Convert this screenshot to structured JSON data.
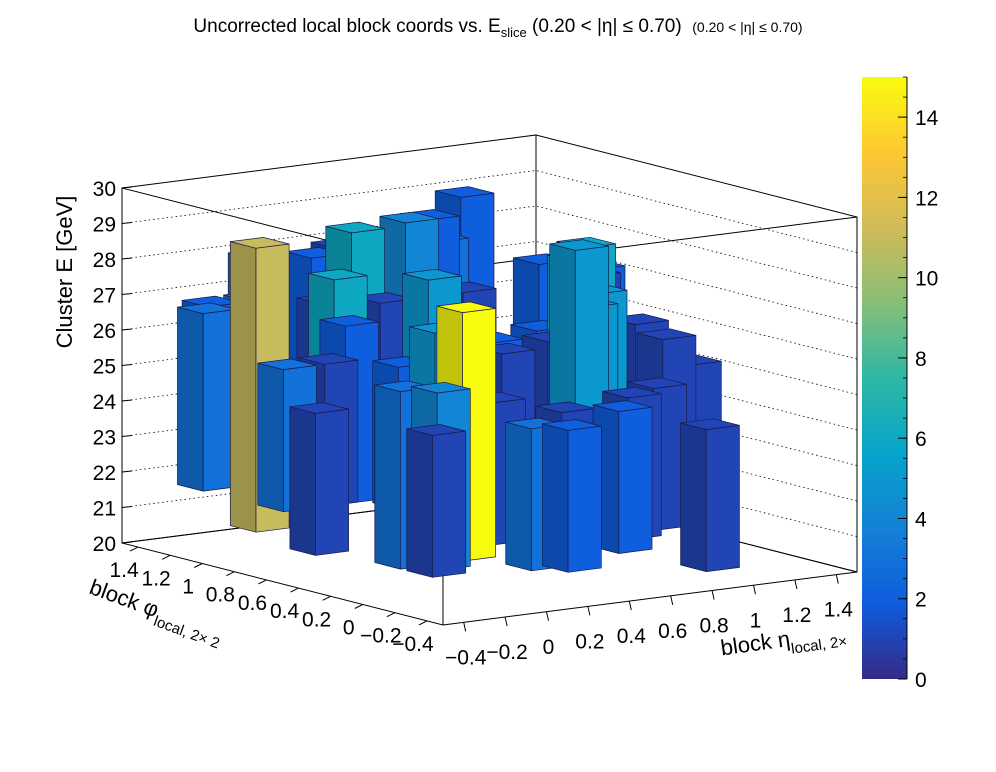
{
  "title": {
    "main": "Uncorrected local block coords vs. E",
    "subscript": "slice",
    "condition": " (0.20 < |η| ≤ 0.70)",
    "condition_small": "(0.20 < |η| ≤ 0.70)"
  },
  "chart_data": {
    "type": "lego3d",
    "title": "Uncorrected local block coords vs. E_slice (0.20 < |η| ≤ 0.70) (0.20 < |η| ≤ 0.70)",
    "axes": {
      "x": {
        "label": "block η",
        "label_sub": "local, 2×",
        "range": [
          -0.5,
          1.5
        ],
        "tick_labels": [
          "−0.4",
          "−0.2",
          "0",
          "0.2",
          "0.4",
          "0.6",
          "0.8",
          "1",
          "1.2",
          "1.4"
        ]
      },
      "y": {
        "label": "block φ",
        "label_sub": "local, 2× 2",
        "range": [
          -0.5,
          1.5
        ],
        "tick_labels": [
          "−0.4",
          "−0.2",
          "0",
          "0.2",
          "0.4",
          "0.6",
          "0.8",
          "1",
          "1.2",
          "1.4"
        ]
      },
      "z": {
        "label": "Cluster E  [GeV]",
        "range": [
          20,
          30
        ],
        "tick_labels": [
          "20",
          "21",
          "22",
          "23",
          "24",
          "25",
          "26",
          "27",
          "28",
          "29",
          "30"
        ]
      }
    },
    "color_scale": {
      "range": [
        0,
        15
      ],
      "tick_labels": [
        "0",
        "2",
        "4",
        "6",
        "8",
        "10",
        "12",
        "14"
      ],
      "palette": [
        "#352a87",
        "#0f5cdd",
        "#1481d6",
        "#06a4ca",
        "#2eb7a4",
        "#87bf77",
        "#d1bb59",
        "#fec832",
        "#f9fb0e"
      ]
    },
    "bars": [
      {
        "eta": 0.0,
        "phi": 0.0,
        "zlo": 21,
        "zhi": 28,
        "count": 15
      },
      {
        "eta": -0.3,
        "phi": 0.9,
        "zlo": 21,
        "zhi": 29,
        "count": 11
      },
      {
        "eta": 0.0,
        "phi": 0.8,
        "zlo": 22,
        "zhi": 28,
        "count": 6
      },
      {
        "eta": 0.2,
        "phi": 0.95,
        "zlo": 23,
        "zhi": 29,
        "count": 6
      },
      {
        "eta": 0.7,
        "phi": 0.2,
        "zlo": 23,
        "zhi": 29,
        "count": 5
      },
      {
        "eta": 1.0,
        "phi": 0.6,
        "zlo": 23,
        "zhi": 28,
        "count": 6
      },
      {
        "eta": 1.2,
        "phi": 0.8,
        "zlo": 22,
        "zhi": 28,
        "count": 6
      },
      {
        "eta": 0.1,
        "phi": 0.3,
        "zlo": 22,
        "zhi": 27,
        "count": 5
      },
      {
        "eta": 0.9,
        "phi": 0.4,
        "zlo": 22,
        "zhi": 27,
        "count": 5
      },
      {
        "eta": 1.1,
        "phi": 0.6,
        "zlo": 22,
        "zhi": 27,
        "count": 5
      },
      {
        "eta": 0.3,
        "phi": 0.6,
        "zlo": 22,
        "zhi": 28,
        "count": 5
      },
      {
        "eta": -0.3,
        "phi": 0.0,
        "zlo": 21,
        "zhi": 26,
        "count": 3
      },
      {
        "eta": -0.2,
        "phi": -0.1,
        "zlo": 21,
        "zhi": 26,
        "count": 4
      },
      {
        "eta": 0.1,
        "phi": -0.3,
        "zlo": 21,
        "zhi": 25,
        "count": 3
      },
      {
        "eta": -0.4,
        "phi": 1.1,
        "zlo": 22,
        "zhi": 27,
        "count": 3
      },
      {
        "eta": -0.3,
        "phi": 1.2,
        "zlo": 22,
        "zhi": 27,
        "count": 2
      },
      {
        "eta": -0.1,
        "phi": 1.2,
        "zlo": 22,
        "zhi": 27,
        "count": 3
      },
      {
        "eta": 0.0,
        "phi": 1.3,
        "zlo": 23,
        "zhi": 28,
        "count": 3
      },
      {
        "eta": -0.1,
        "phi": 0.6,
        "zlo": 22,
        "zhi": 27,
        "count": 2
      },
      {
        "eta": 0.5,
        "phi": 1.0,
        "zlo": 24,
        "zhi": 29,
        "count": 4
      },
      {
        "eta": 0.6,
        "phi": 1.0,
        "zlo": 24,
        "zhi": 29,
        "count": 2
      },
      {
        "eta": 0.8,
        "phi": 1.2,
        "zlo": 23,
        "zhi": 28,
        "count": 3
      },
      {
        "eta": 1.0,
        "phi": 1.3,
        "zlo": 24,
        "zhi": 29,
        "count": 2
      },
      {
        "eta": 1.3,
        "phi": 1.2,
        "zlo": 22,
        "zhi": 27,
        "count": 2
      },
      {
        "eta": 1.4,
        "phi": 1.0,
        "zlo": 22,
        "zhi": 27,
        "count": 2
      },
      {
        "eta": 1.2,
        "phi": 0.3,
        "zlo": 22,
        "zhi": 26,
        "count": 1
      },
      {
        "eta": 1.4,
        "phi": 0.4,
        "zlo": 21,
        "zhi": 25,
        "count": 1
      },
      {
        "eta": 0.6,
        "phi": -0.2,
        "zlo": 21,
        "zhi": 25,
        "count": 2
      },
      {
        "eta": 0.4,
        "phi": -0.1,
        "zlo": 21,
        "zhi": 25,
        "count": 1
      },
      {
        "eta": 0.2,
        "phi": -0.4,
        "zlo": 21,
        "zhi": 25,
        "count": 2
      },
      {
        "eta": -0.3,
        "phi": -0.2,
        "zlo": 21,
        "zhi": 25,
        "count": 1
      },
      {
        "eta": 0.3,
        "phi": 0.2,
        "zlo": 21,
        "zhi": 25,
        "count": 1
      },
      {
        "eta": 0.8,
        "phi": 0.0,
        "zlo": 21,
        "zhi": 25,
        "count": 1
      },
      {
        "eta": 1.0,
        "phi": 0.1,
        "zlo": 21,
        "zhi": 25,
        "count": 1
      },
      {
        "eta": 1.1,
        "phi": -0.1,
        "zlo": 20,
        "zhi": 24,
        "count": 1
      },
      {
        "eta": -0.2,
        "phi": 0.6,
        "zlo": 22,
        "zhi": 26,
        "count": 1
      },
      {
        "eta": 0.3,
        "phi": 0.9,
        "zlo": 23,
        "zhi": 27,
        "count": 1
      },
      {
        "eta": 0.7,
        "phi": 0.9,
        "zlo": 23,
        "zhi": 27,
        "count": 1
      },
      {
        "eta": 0.4,
        "phi": 1.3,
        "zlo": 24,
        "zhi": 28,
        "count": 1
      },
      {
        "eta": 0.5,
        "phi": 0.4,
        "zlo": 22,
        "zhi": 26,
        "count": 1
      },
      {
        "eta": -0.4,
        "phi": 0.4,
        "zlo": 21,
        "zhi": 25,
        "count": 1
      },
      {
        "eta": 0.0,
        "phi": 0.4,
        "zlo": 22,
        "zhi": 26,
        "count": 2
      },
      {
        "eta": 1.3,
        "phi": 0.6,
        "zlo": 22,
        "zhi": 26,
        "count": 1
      },
      {
        "eta": -0.4,
        "phi": 0.6,
        "zlo": 22,
        "zhi": 26,
        "count": 3
      },
      {
        "eta": 0.9,
        "phi": 0.7,
        "zlo": 22,
        "zhi": 26,
        "count": 2
      },
      {
        "eta": 0.6,
        "phi": 0.6,
        "zlo": 22,
        "zhi": 26,
        "count": 2
      },
      {
        "eta": 0.2,
        "phi": 1.2,
        "zlo": 24,
        "zhi": 28,
        "count": 2
      },
      {
        "eta": 0.8,
        "phi": 0.5,
        "zlo": 22,
        "zhi": 26,
        "count": 1
      },
      {
        "eta": 1.3,
        "phi": 0.9,
        "zlo": 23,
        "zhi": 27,
        "count": 1
      },
      {
        "eta": 0.1,
        "phi": 1.0,
        "zlo": 23,
        "zhi": 27,
        "count": 1
      }
    ]
  }
}
